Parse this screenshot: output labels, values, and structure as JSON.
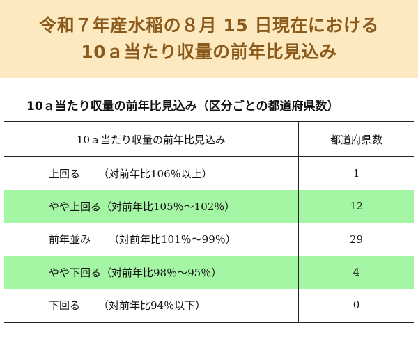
{
  "banner": {
    "line1": "令和７年産水稲の８月 15 日現在における",
    "line2": "10ａ当たり収量の前年比見込み",
    "background": "#fde9bf",
    "text_color": "#8a5a1c"
  },
  "subtitle": "10ａ当たり収量の前年比見込み（区分ごとの都道府県数）",
  "table": {
    "headers": [
      "10ａ当たり収量の前年比見込み",
      "都道府県数"
    ],
    "highlight_color": "#a4f5a4",
    "rows": [
      {
        "label": "上回る",
        "range": "（対前年比106％以上）",
        "count": "1",
        "highlight": false
      },
      {
        "label": "やや上回る",
        "range": "（対前年比105％～102％）",
        "count": "12",
        "highlight": true
      },
      {
        "label": "前年並み",
        "range": "（対前年比101％～99％）",
        "count": "29",
        "highlight": false
      },
      {
        "label": "やや下回る",
        "range": "（対前年比98％～95％）",
        "count": "4",
        "highlight": true
      },
      {
        "label": "下回る",
        "range": "（対前年比94％以下）",
        "count": "0",
        "highlight": false
      }
    ]
  }
}
